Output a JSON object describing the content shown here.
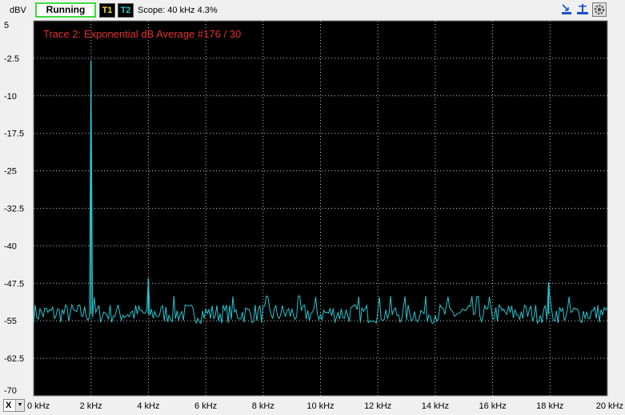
{
  "toolbar": {
    "unit": "dBV",
    "run_label": "Running",
    "t1_label": "T1",
    "t2_label": "T2",
    "scope_text": "Scope: 40 kHz 4.3%",
    "axis_select": "X"
  },
  "colors": {
    "trace": "#29c4cf",
    "annotation": "#e53030",
    "t1": "#f0e040",
    "t2": "#29c4cf",
    "grid": "#c8c8c8",
    "background": "#000000"
  },
  "icons": [
    "cursor-marker-icon",
    "peak-marker-icon",
    "settings-icon"
  ],
  "chart_data": {
    "type": "line",
    "title": "",
    "annotation": "Trace 2: Exponential dB Average #176 / 30",
    "xlabel": "",
    "ylabel": "dBV",
    "xlim": [
      0,
      20
    ],
    "ylim": [
      -70,
      5
    ],
    "x_unit": "kHz",
    "grid": true,
    "x_ticks": [
      "0 kHz",
      "2 kHz",
      "4 kHz",
      "6 kHz",
      "8 kHz",
      "10 kHz",
      "12 kHz",
      "14 kHz",
      "16 kHz",
      "18 kHz",
      "20 kHz"
    ],
    "y_ticks": [
      "5",
      "-2.5",
      "-10",
      "-17.5",
      "-25",
      "-32.5",
      "-40",
      "-47.5",
      "-55",
      "-62.5",
      "-70"
    ],
    "series": [
      {
        "noise_floor_db": -53.7,
        "noise_range_db": [
          -55.5,
          -51.5
        ],
        "peaks": [
          {
            "x": 2.0,
            "y": -3.0
          },
          {
            "x": 4.0,
            "y": -46.5
          },
          {
            "x": 17.95,
            "y": -47.3
          }
        ]
      }
    ]
  }
}
